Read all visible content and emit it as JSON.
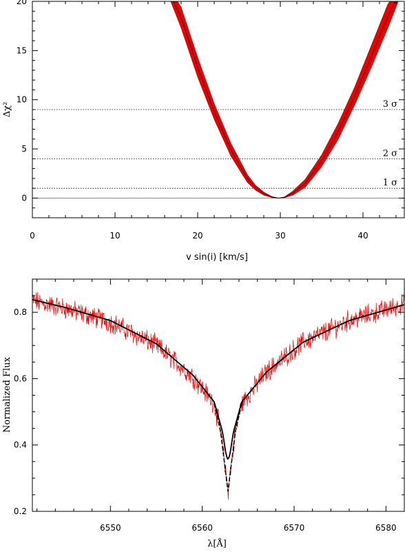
{
  "chart_data": [
    {
      "type": "line",
      "xlabel": "v sin(i) [km/s]",
      "ylabel": "Δχ²",
      "xlim": [
        0,
        45
      ],
      "ylim": [
        -2,
        20
      ],
      "xticks": [
        0,
        10,
        20,
        30,
        40
      ],
      "yticks": [
        0,
        5,
        10,
        15,
        20
      ],
      "grid": false,
      "colors": {
        "band": "#ee0000",
        "center": "#000000",
        "reference": "#888888"
      },
      "minimum": {
        "x": 29.8,
        "y": 0
      },
      "band": {
        "x": [
          16.5,
          18,
          20,
          22,
          24,
          26,
          27,
          28,
          29,
          29.8,
          30.5,
          31.5,
          33,
          35,
          37,
          39,
          41,
          43,
          44.5
        ],
        "lower": [
          20.5,
          17.3,
          12.3,
          8.0,
          4.3,
          1.6,
          0.8,
          0.3,
          0.05,
          0,
          0.04,
          0.3,
          1.1,
          3.2,
          6.0,
          9.5,
          13.3,
          17.3,
          20.5
        ],
        "upper": [
          21.5,
          19.4,
          14.3,
          9.6,
          5.6,
          2.4,
          1.3,
          0.6,
          0.15,
          0,
          0.12,
          0.7,
          1.9,
          4.4,
          7.6,
          11.3,
          15.5,
          19.7,
          21.5
        ]
      },
      "sigma_levels": [
        {
          "label": "1 σ",
          "value": 1.0
        },
        {
          "label": "2 σ",
          "value": 4.0
        },
        {
          "label": "3 σ",
          "value": 9.0
        }
      ]
    },
    {
      "type": "line",
      "xlabel": "λ[Å]",
      "ylabel": "Normalized Flux",
      "xlim": [
        6541.5,
        6582
      ],
      "ylim": [
        0.2,
        0.9
      ],
      "xticks": [
        6550,
        6560,
        6570,
        6580
      ],
      "yticks": [
        0.2,
        0.4,
        0.6,
        0.8
      ],
      "grid": false,
      "colors": {
        "observed": "#ee0000",
        "model": "#000000"
      },
      "series": [
        {
          "style": "solid",
          "x": [
            6541.5,
            6545,
            6550,
            6555,
            6559,
            6561.3,
            6562.2,
            6562.6,
            6562.8,
            6563.0,
            6563.4,
            6564.3,
            6567,
            6571,
            6576,
            6582
          ],
          "y": [
            0.838,
            0.815,
            0.775,
            0.705,
            0.61,
            0.53,
            0.44,
            0.37,
            0.355,
            0.37,
            0.44,
            0.53,
            0.62,
            0.71,
            0.775,
            0.823
          ]
        },
        {
          "style": "dashed",
          "x": [
            6561.3,
            6562.0,
            6562.4,
            6562.8,
            6563.2,
            6563.6,
            6564.3
          ],
          "y": [
            0.525,
            0.44,
            0.35,
            0.26,
            0.35,
            0.44,
            0.525
          ]
        },
        {
          "style": "noisy",
          "noise": 0.025,
          "x": [
            6541.5,
            6545,
            6550,
            6555,
            6559,
            6561.3,
            6562.0,
            6562.4,
            6562.8,
            6563.2,
            6563.6,
            6564.3,
            6567,
            6571,
            6576,
            6582
          ],
          "y": [
            0.835,
            0.812,
            0.77,
            0.7,
            0.605,
            0.525,
            0.44,
            0.35,
            0.26,
            0.35,
            0.44,
            0.525,
            0.62,
            0.71,
            0.775,
            0.825
          ]
        }
      ]
    }
  ]
}
